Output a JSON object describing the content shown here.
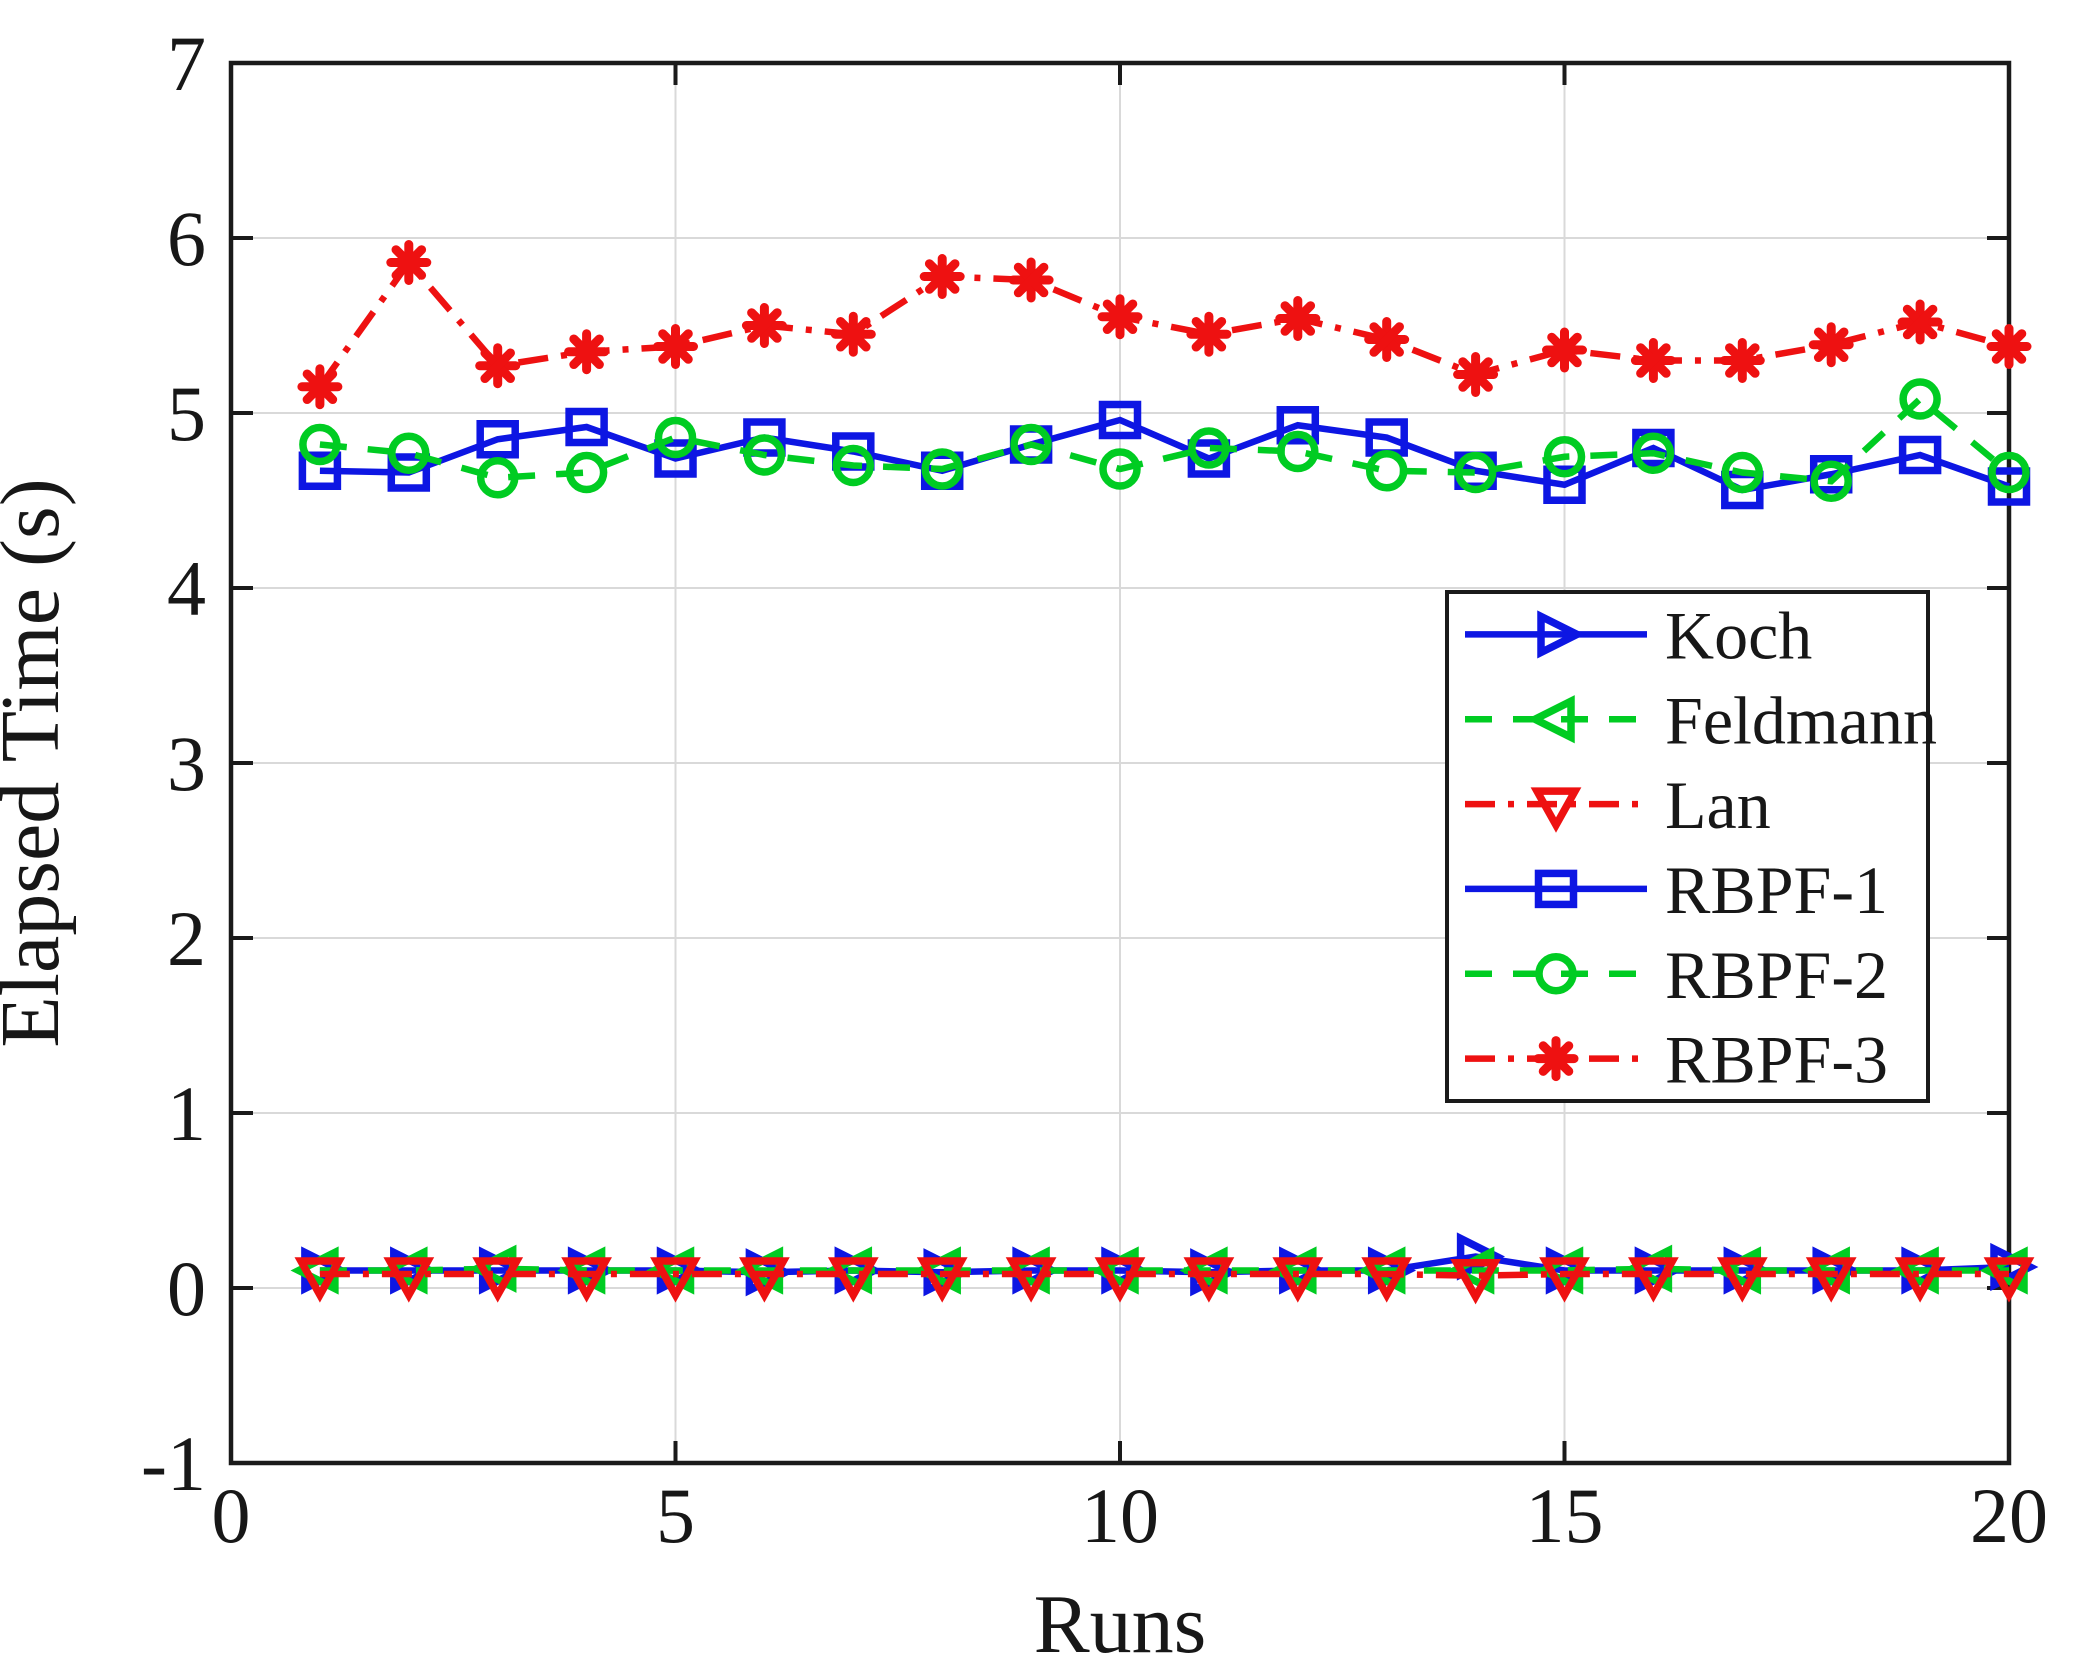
{
  "figure": {
    "background": "#ffffff",
    "plot_border_color": "#1a1a1a",
    "grid_color": "#d9d9d9",
    "text_color": "#171717"
  },
  "chart_data": {
    "type": "line",
    "title": "",
    "xlabel": "Runs",
    "ylabel": "Elapsed Time (s)",
    "xlim": [
      0,
      20
    ],
    "ylim": [
      -1,
      7
    ],
    "xticks": [
      0,
      5,
      10,
      15,
      20
    ],
    "yticks": [
      -1,
      0,
      1,
      2,
      3,
      4,
      5,
      6,
      7
    ],
    "grid": true,
    "legend_position": "inside-right-middle",
    "x": [
      1,
      2,
      3,
      4,
      5,
      6,
      7,
      8,
      9,
      10,
      11,
      12,
      13,
      14,
      15,
      16,
      17,
      18,
      19,
      20
    ],
    "series": [
      {
        "name": "Koch",
        "color": "#0d16e3",
        "line_style": "solid",
        "marker": "triangle-right",
        "values": [
          0.1,
          0.1,
          0.1,
          0.1,
          0.1,
          0.09,
          0.1,
          0.09,
          0.1,
          0.1,
          0.09,
          0.1,
          0.1,
          0.18,
          0.1,
          0.1,
          0.1,
          0.1,
          0.1,
          0.12
        ]
      },
      {
        "name": "Feldmann",
        "color": "#00cc22",
        "line_style": "dashed",
        "marker": "triangle-left",
        "values": [
          0.1,
          0.1,
          0.11,
          0.1,
          0.1,
          0.1,
          0.1,
          0.1,
          0.1,
          0.1,
          0.1,
          0.1,
          0.1,
          0.1,
          0.1,
          0.11,
          0.1,
          0.1,
          0.1,
          0.1
        ]
      },
      {
        "name": "Lan",
        "color": "#ee1111",
        "line_style": "dashdot",
        "marker": "triangle-down",
        "values": [
          0.08,
          0.08,
          0.08,
          0.08,
          0.08,
          0.08,
          0.08,
          0.08,
          0.08,
          0.08,
          0.08,
          0.08,
          0.08,
          0.07,
          0.08,
          0.08,
          0.08,
          0.08,
          0.08,
          0.08
        ]
      },
      {
        "name": "RBPF-1",
        "color": "#0d16e3",
        "line_style": "solid",
        "marker": "square",
        "values": [
          4.67,
          4.66,
          4.85,
          4.92,
          4.74,
          4.86,
          4.78,
          4.67,
          4.82,
          4.96,
          4.74,
          4.93,
          4.86,
          4.67,
          4.59,
          4.8,
          4.56,
          4.65,
          4.76,
          4.58
        ]
      },
      {
        "name": "RBPF-2",
        "color": "#00cc22",
        "line_style": "dashed",
        "marker": "circle",
        "values": [
          4.82,
          4.77,
          4.63,
          4.66,
          4.86,
          4.76,
          4.7,
          4.68,
          4.82,
          4.68,
          4.8,
          4.78,
          4.67,
          4.66,
          4.75,
          4.77,
          4.66,
          4.61,
          5.08,
          4.66
        ]
      },
      {
        "name": "RBPF-3",
        "color": "#ee1111",
        "line_style": "dashdot",
        "marker": "asterisk",
        "values": [
          5.15,
          5.86,
          5.27,
          5.35,
          5.38,
          5.5,
          5.45,
          5.78,
          5.76,
          5.55,
          5.45,
          5.54,
          5.42,
          5.22,
          5.36,
          5.3,
          5.3,
          5.39,
          5.52,
          5.38
        ]
      }
    ],
    "legend_labels": [
      "Koch",
      "Feldmann",
      "Lan",
      "RBPF-1",
      "RBPF-2",
      "RBPF-3"
    ]
  }
}
